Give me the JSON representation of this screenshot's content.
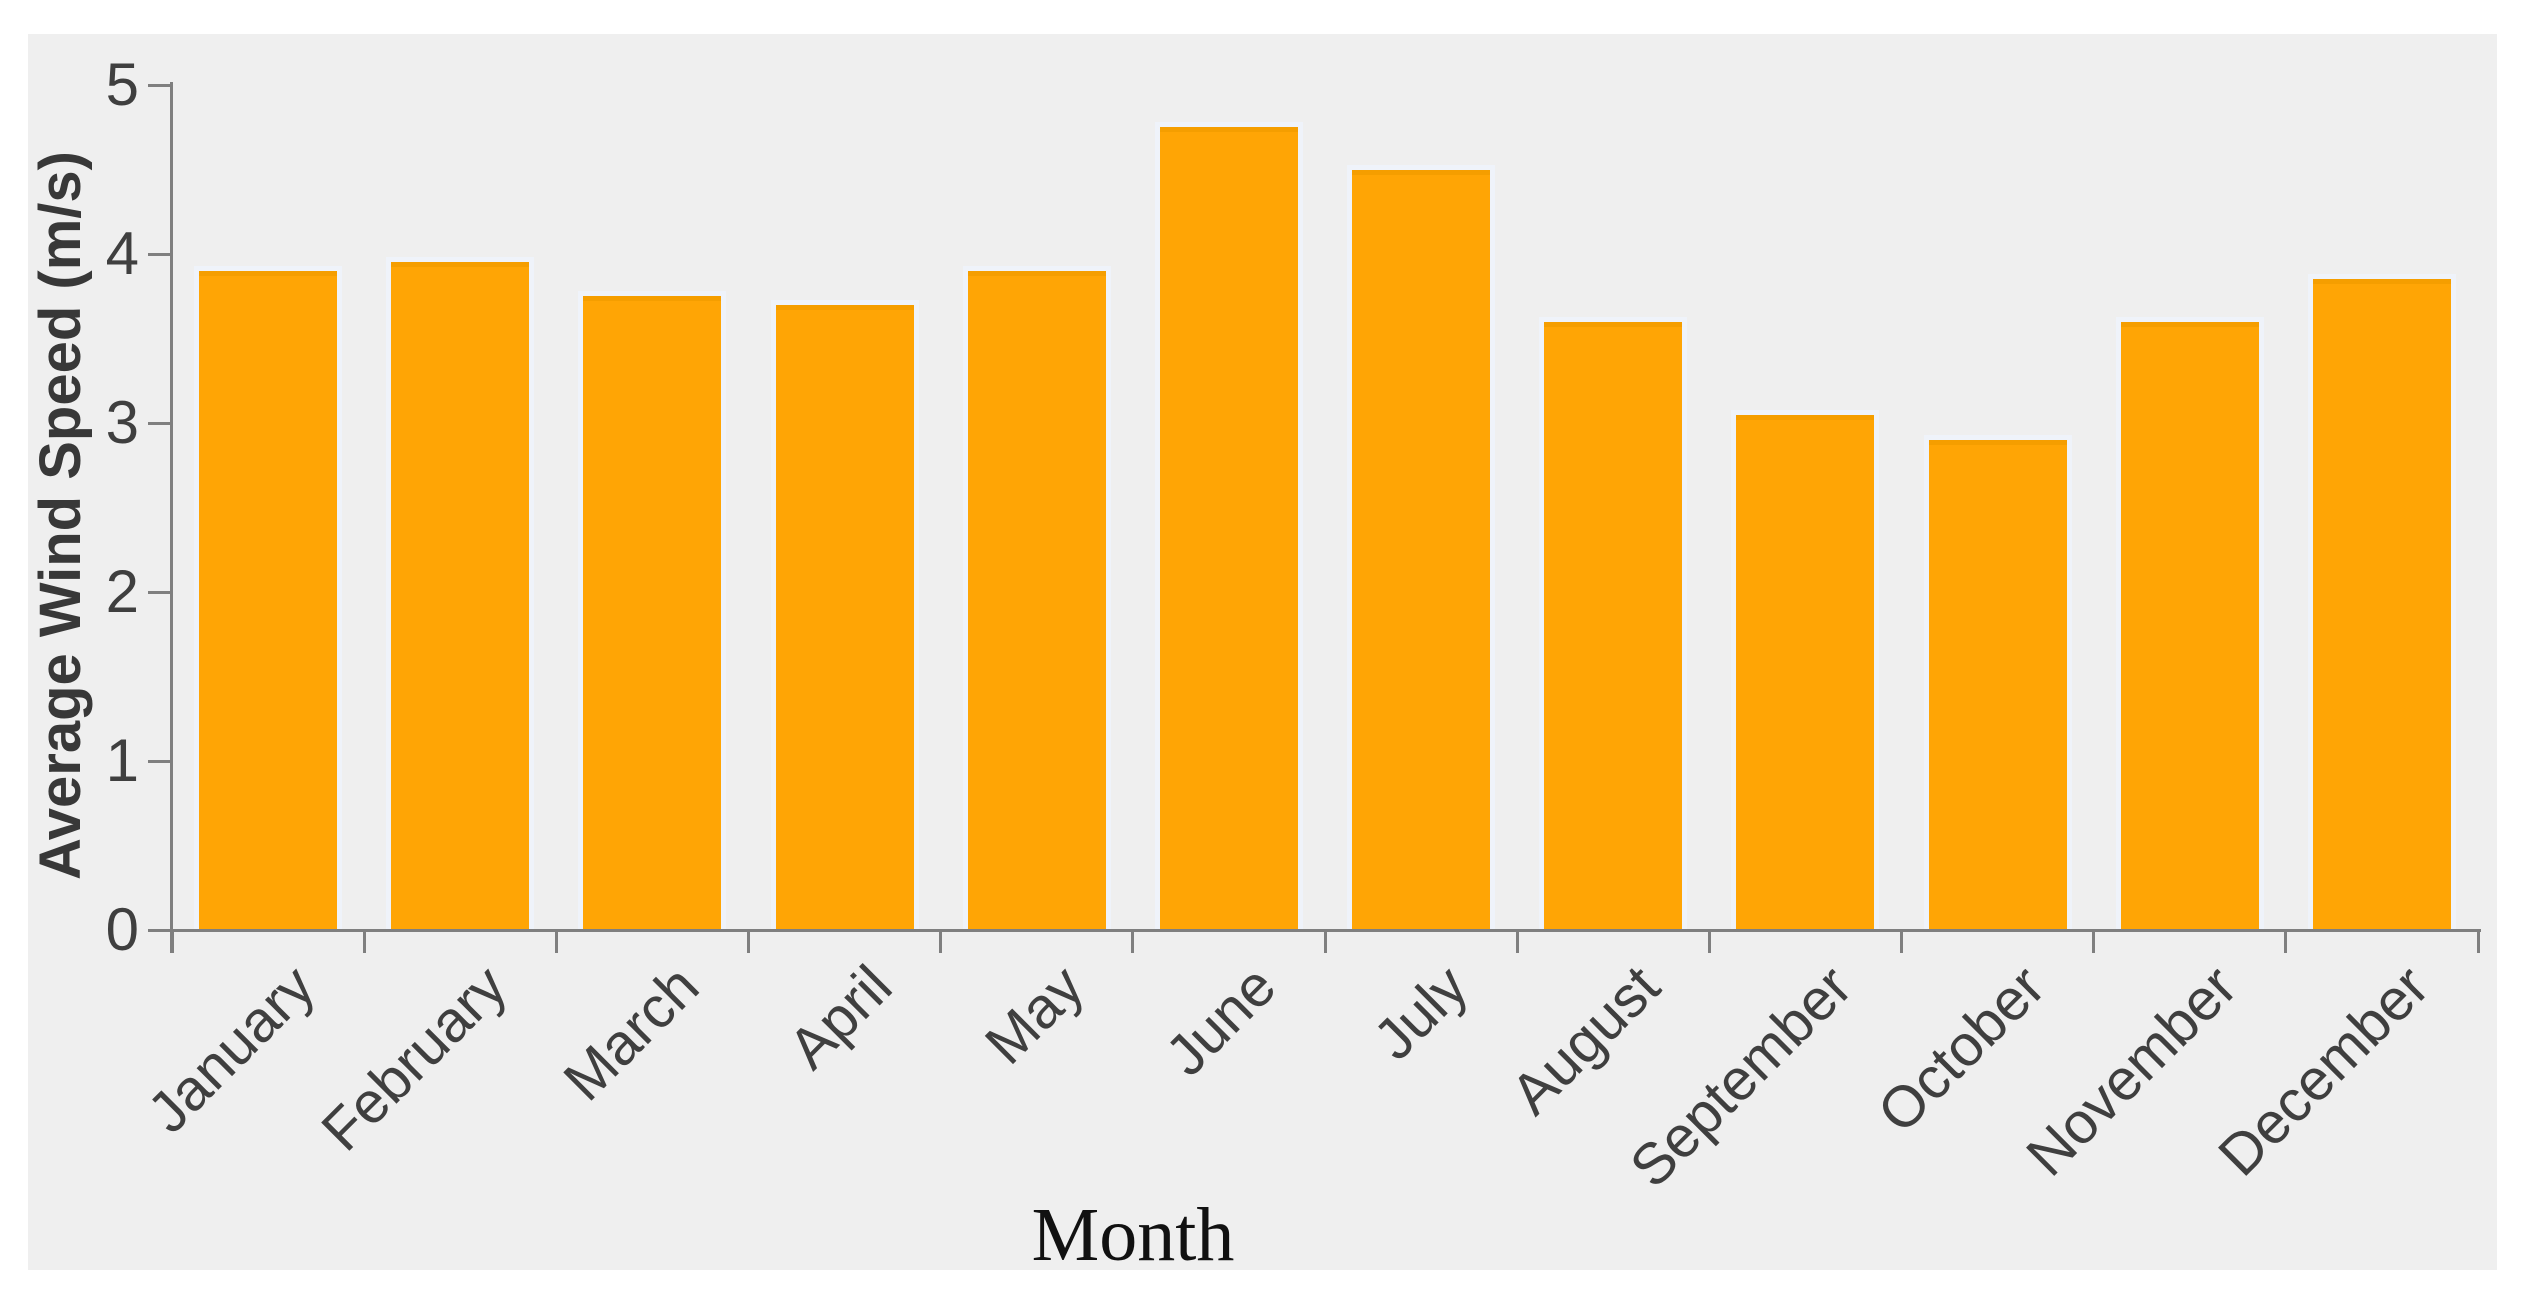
{
  "chart_data": {
    "type": "bar",
    "title": "",
    "categories": [
      "January",
      "February",
      "March",
      "April",
      "May",
      "June",
      "July",
      "August",
      "September",
      "October",
      "November",
      "December"
    ],
    "values": [
      3.9,
      3.95,
      3.75,
      3.7,
      3.9,
      4.75,
      4.5,
      3.6,
      3.05,
      2.9,
      3.6,
      3.85
    ],
    "xlabel": "Month",
    "ylabel": "Average Wind Speed (m/s)",
    "ylim": [
      0,
      5
    ],
    "yticks": [
      "0",
      "1",
      "2",
      "3",
      "4",
      "5"
    ],
    "grid": false,
    "legend_position": "none",
    "colors": {
      "bar": "#FFA505",
      "bar_cap": "#F59E00",
      "bar_halo": "#EFF3FA",
      "plot_background": "#EFEFEF",
      "page_background": "#FFFFFF",
      "axis": "#7F7F7F",
      "tick_text": "#3F3F3F",
      "axis_title_text": "#383838",
      "x_title_text": "#111111"
    }
  }
}
